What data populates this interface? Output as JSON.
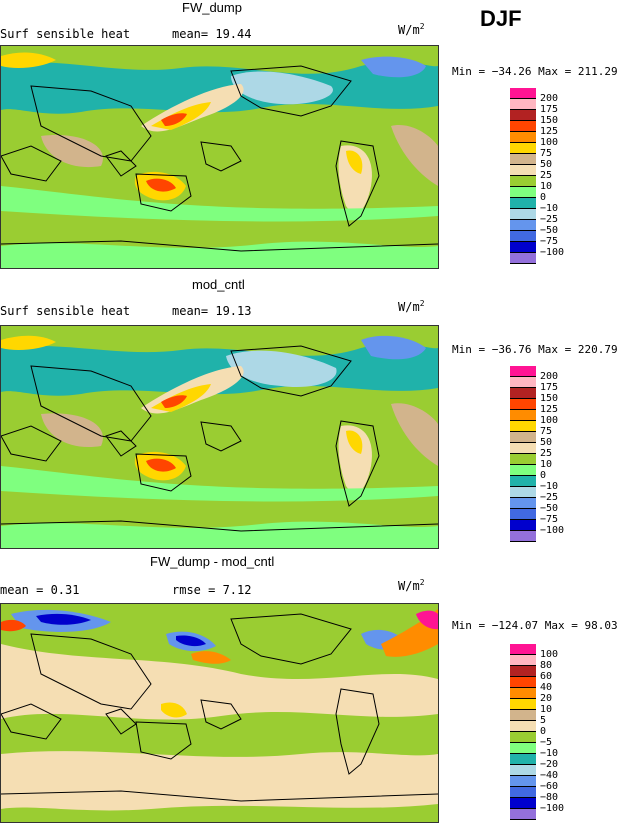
{
  "season": "DJF",
  "panels": [
    {
      "title": "FW_dump",
      "left_label": "Surf sensible heat",
      "stat1": "mean=  19.44",
      "stat2": "",
      "units": "W/m",
      "units_sup": "2",
      "minmax": "Min = −34.26 Max = 211.29",
      "levels": [
        "200",
        "175",
        "150",
        "125",
        "100",
        "75",
        "50",
        "25",
        "10",
        "0",
        "−10",
        "−25",
        "−50",
        "−75",
        "−100"
      ],
      "colors": [
        "#ff1493",
        "#ffb6c1",
        "#b22222",
        "#ff4500",
        "#ff8c00",
        "#ffd700",
        "#d2b48c",
        "#f5deb3",
        "#9acd32",
        "#7fff7f",
        "#20b2aa",
        "#add8e6",
        "#6495ed",
        "#4169e1",
        "#0000cd",
        "#9370db"
      ]
    },
    {
      "title": "mod_cntl",
      "left_label": "Surf sensible heat",
      "stat1": "mean=  19.13",
      "stat2": "",
      "units": "W/m",
      "units_sup": "2",
      "minmax": "Min = −36.76 Max = 220.79",
      "levels": [
        "200",
        "175",
        "150",
        "125",
        "100",
        "75",
        "50",
        "25",
        "10",
        "0",
        "−10",
        "−25",
        "−50",
        "−75",
        "−100"
      ],
      "colors": [
        "#ff1493",
        "#ffb6c1",
        "#b22222",
        "#ff4500",
        "#ff8c00",
        "#ffd700",
        "#d2b48c",
        "#f5deb3",
        "#9acd32",
        "#7fff7f",
        "#20b2aa",
        "#add8e6",
        "#6495ed",
        "#4169e1",
        "#0000cd",
        "#9370db"
      ]
    },
    {
      "title": "FW_dump - mod_cntl",
      "left_label": "mean =    0.31",
      "stat1": "rmse =    7.12",
      "stat2": "",
      "units": "W/m",
      "units_sup": "2",
      "minmax": "Min = −124.07 Max =  98.03",
      "levels": [
        "100",
        "80",
        "60",
        "40",
        "20",
        "10",
        "5",
        "0",
        "−5",
        "−10",
        "−20",
        "−40",
        "−60",
        "−80",
        "−100"
      ],
      "colors": [
        "#ff1493",
        "#ffb6c1",
        "#b22222",
        "#ff4500",
        "#ff8c00",
        "#ffd700",
        "#d2b48c",
        "#f5deb3",
        "#9acd32",
        "#7fff7f",
        "#20b2aa",
        "#add8e6",
        "#6495ed",
        "#4169e1",
        "#0000cd",
        "#9370db"
      ]
    }
  ],
  "chart_data": [
    {
      "type": "heatmap",
      "title": "FW_dump",
      "subtitle": "Surf sensible heat",
      "mean": 19.44,
      "units": "W/m2",
      "min": -34.26,
      "max": 211.29,
      "levels": [
        -100,
        -75,
        -50,
        -25,
        -10,
        0,
        10,
        25,
        50,
        75,
        100,
        125,
        150,
        175,
        200
      ]
    },
    {
      "type": "heatmap",
      "title": "mod_cntl",
      "subtitle": "Surf sensible heat",
      "mean": 19.13,
      "units": "W/m2",
      "min": -36.76,
      "max": 220.79,
      "levels": [
        -100,
        -75,
        -50,
        -25,
        -10,
        0,
        10,
        25,
        50,
        75,
        100,
        125,
        150,
        175,
        200
      ]
    },
    {
      "type": "heatmap",
      "title": "FW_dump - mod_cntl",
      "mean": 0.31,
      "rmse": 7.12,
      "units": "W/m2",
      "min": -124.07,
      "max": 98.03,
      "levels": [
        -100,
        -80,
        -60,
        -40,
        -20,
        -10,
        -5,
        0,
        5,
        10,
        20,
        40,
        60,
        80,
        100
      ]
    }
  ]
}
